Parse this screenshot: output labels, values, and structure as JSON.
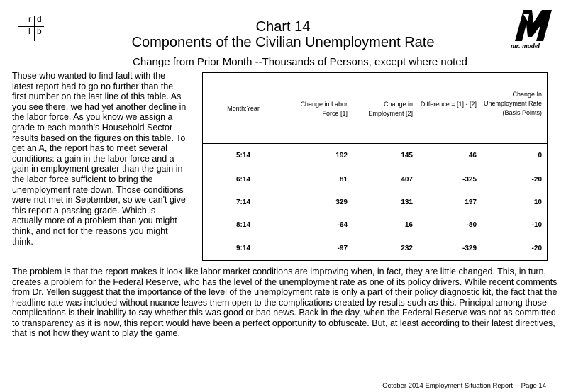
{
  "header": {
    "logo_left_letters": [
      "r",
      "d",
      "l",
      "b"
    ],
    "logo_right_text": "mr. model",
    "chart_number": "Chart 14",
    "title": "Components of the Civilian Unemployment Rate",
    "subtitle": "Change from Prior Month --Thousands of Persons, except where noted"
  },
  "side_text": "Those who wanted to find fault with the latest report had to go no further than the first number on the last line of this table.  As you see there, we had yet another decline in the labor force.  As you know we assign a grade to each month's Household Sector results based on the figures on this table.  To get an A, the report has to meet several conditions: a gain in the labor force and a gain in employment greater than the gain in the labor force sufficient to bring the unemployment rate down.  Those conditions were not met in September, so we can't give this report a passing grade.  Which is actually more of a problem than you might think, and not for the reasons you might think.",
  "table": {
    "headers": [
      "Month:Year",
      "Change in Labor Force [1]",
      "Change in Employment [2]",
      "Difference = [1] - [2]",
      "Change In Unemployment Rate (Basis Points)"
    ],
    "rows": [
      {
        "month": "5:14",
        "labor": "192",
        "employment": "145",
        "difference": "46",
        "rate": "0"
      },
      {
        "month": "6:14",
        "labor": "81",
        "employment": "407",
        "difference": "-325",
        "rate": "-20"
      },
      {
        "month": "7:14",
        "labor": "329",
        "employment": "131",
        "difference": "197",
        "rate": "10"
      },
      {
        "month": "8:14",
        "labor": "-64",
        "employment": "16",
        "difference": "-80",
        "rate": "-10"
      },
      {
        "month": "9:14",
        "labor": "-97",
        "employment": "232",
        "difference": "-329",
        "rate": "-20"
      }
    ]
  },
  "paragraph": "The problem is that the report makes it look like labor market conditions are improving when, in fact, they are little changed.  This, in turn, creates a problem for the Federal Reserve, who has the level of the unemployment rate as one of its policy drivers.  While recent comments from Dr. Yellen suggest that the importance of the level of the unemployment rate is only a part of their policy diagnostic kit, the fact that the headline rate was included without nuance leaves them open to the complications created by results such as this.  Principal among those complications is their inability to say whether this was good or bad news.  Back in the day, when the Federal Reserve was not as committed to transparency as it is now, this report would have been a perfect opportunity to obfuscate.  But, at least according to their latest directives, that is not how they want to play the game.",
  "footer": "October 2014 Employment Situation Report -- Page 14"
}
